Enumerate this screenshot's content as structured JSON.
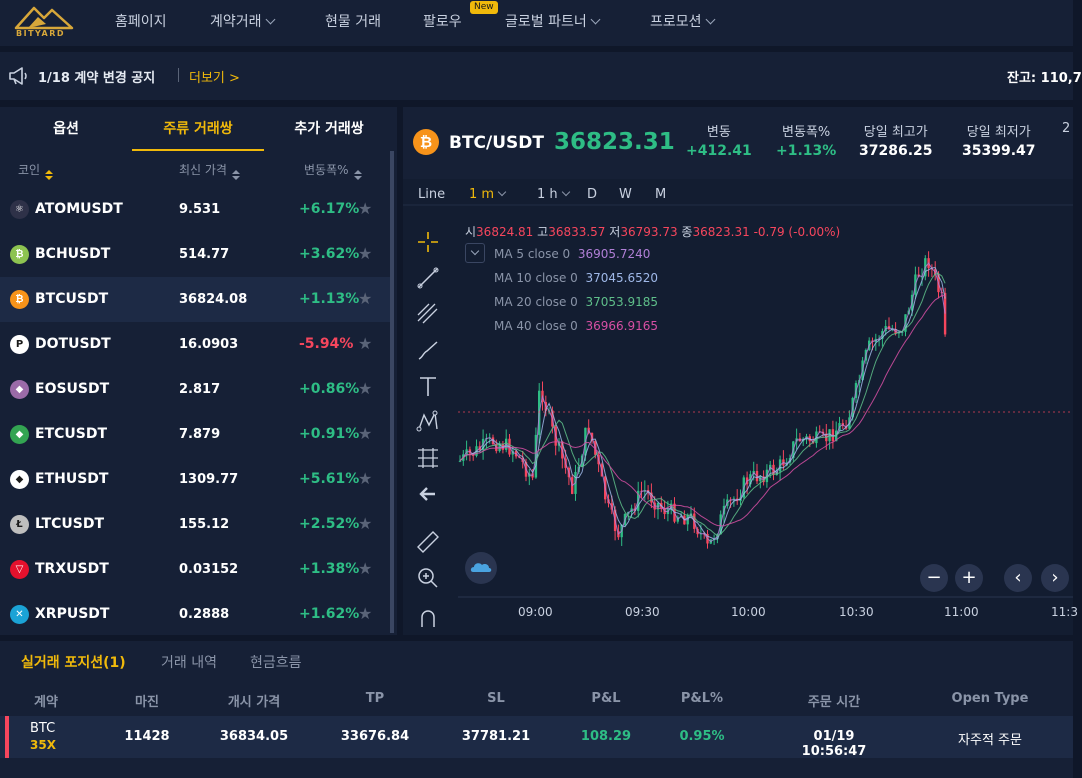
{
  "brand": {
    "logo_text": "BITYARD"
  },
  "nav": {
    "items": [
      {
        "label": "홈페이지",
        "dropdown": false
      },
      {
        "label": "계약거래",
        "dropdown": true
      },
      {
        "label": "현물 거래",
        "dropdown": false
      },
      {
        "label": "팔로우",
        "dropdown": false
      },
      {
        "label": "글로벌 파트너",
        "dropdown": true
      },
      {
        "label": "프로모션",
        "dropdown": true
      }
    ],
    "new_badge": "New"
  },
  "notice": {
    "text": "1/18 계약 변경 공지",
    "more": "더보기 >",
    "balance": "잔고: 110,7"
  },
  "market": {
    "tabs": [
      "옵션",
      "주류 거래쌍",
      "추가 거래쌍"
    ],
    "active_tab": "주류 거래쌍",
    "columns": [
      "코인",
      "최신 가격",
      "변동폭%"
    ],
    "rows": [
      {
        "name": "ATOMUSDT",
        "price": "9.531",
        "change": "+6.17%",
        "dir": "up",
        "icon_color": "#2e3148",
        "icon": "⚛"
      },
      {
        "name": "BCHUSDT",
        "price": "514.77",
        "change": "+3.62%",
        "dir": "up",
        "icon_color": "#8dc351",
        "icon": "₿"
      },
      {
        "name": "BTCUSDT",
        "price": "36824.08",
        "change": "+1.13%",
        "dir": "up",
        "icon_color": "#f7931a",
        "icon": "₿"
      },
      {
        "name": "DOTUSDT",
        "price": "16.0903",
        "change": "-5.94%",
        "dir": "down",
        "icon_color": "#ffffff",
        "icon": "P"
      },
      {
        "name": "EOSUSDT",
        "price": "2.817",
        "change": "+0.86%",
        "dir": "up",
        "icon_color": "#9b6ba8",
        "icon": "◆"
      },
      {
        "name": "ETCUSDT",
        "price": "7.879",
        "change": "+0.91%",
        "dir": "up",
        "icon_color": "#33a452",
        "icon": "◆"
      },
      {
        "name": "ETHUSDT",
        "price": "1309.77",
        "change": "+5.61%",
        "dir": "up",
        "icon_color": "#ffffff",
        "icon": "◆"
      },
      {
        "name": "LTCUSDT",
        "price": "155.12",
        "change": "+2.52%",
        "dir": "up",
        "icon_color": "#bebebe",
        "icon": "Ł"
      },
      {
        "name": "TRXUSDT",
        "price": "0.03152",
        "change": "+1.38%",
        "dir": "up",
        "icon_color": "#e5112d",
        "icon": "▽"
      },
      {
        "name": "XRPUSDT",
        "price": "0.2888",
        "change": "+1.62%",
        "dir": "up",
        "icon_color": "#1ba3d6",
        "icon": "✕"
      }
    ]
  },
  "ticker": {
    "pair": "BTC/USDT",
    "last": "36823.31",
    "stats": [
      {
        "label": "변동",
        "value": "+412.41",
        "color": "#2ebd85"
      },
      {
        "label": "변동폭%",
        "value": "+1.13%",
        "color": "#2ebd85"
      },
      {
        "label": "당일 최고가",
        "value": "37286.25",
        "color": "#ffffff"
      },
      {
        "label": "당일 최저가",
        "value": "35399.47",
        "color": "#ffffff"
      },
      {
        "label": "2",
        "value": "",
        "color": "#ffffff"
      }
    ]
  },
  "timeframes": [
    "Line",
    "1 m",
    "1 h",
    "D",
    "W",
    "M"
  ],
  "active_timeframe": "1 m",
  "ohlc": {
    "o_label": "시",
    "o": "36824.81",
    "h_label": "고",
    "h": "36833.57",
    "l_label": "저",
    "l": "36793.73",
    "c_label": "종",
    "c": "36823.31",
    "change": "-0.79 (-0.00%)"
  },
  "moving_averages": [
    {
      "label": "MA 5 close 0",
      "value": "36905.7240",
      "color": "#b07fd6"
    },
    {
      "label": "MA 10 close 0",
      "value": "37045.6520",
      "color": "#9fb8e8"
    },
    {
      "label": "MA 20 close 0",
      "value": "37053.9185",
      "color": "#5fbf8a"
    },
    {
      "label": "MA 40 close 0",
      "value": "36966.9165",
      "color": "#d64fa3"
    }
  ],
  "chart_data": {
    "type": "line",
    "x_ticks": [
      "09:00",
      "09:30",
      "10:00",
      "10:30",
      "11:00",
      "11:3"
    ],
    "series": [
      {
        "name": "MA 5 close 0",
        "color": "#b07fd6"
      },
      {
        "name": "MA 10 close 0",
        "color": "#9fb8e8"
      },
      {
        "name": "MA 20 close 0",
        "color": "#5fbf8a"
      },
      {
        "name": "MA 40 close 0",
        "color": "#d64fa3"
      }
    ],
    "last_price": 36823.31
  },
  "positions": {
    "tabs": [
      "실거래 포지션(1)",
      "거래 내역",
      "현금흐름"
    ],
    "active_tab": "실거래 포지션(1)",
    "columns": [
      "계약",
      "마진",
      "개시 가격",
      "TP",
      "SL",
      "P&L",
      "P&L%",
      "주문 시간",
      "Open Type"
    ],
    "rows": [
      {
        "contract": "BTC",
        "leverage": "35X",
        "margin": "11428",
        "open_price": "36834.05",
        "tp": "33676.84",
        "sl": "37781.21",
        "pnl": "108.29",
        "pnl_pct": "0.95%",
        "time": "01/19 10:56:47",
        "open_type": "자주적 주문"
      }
    ]
  }
}
